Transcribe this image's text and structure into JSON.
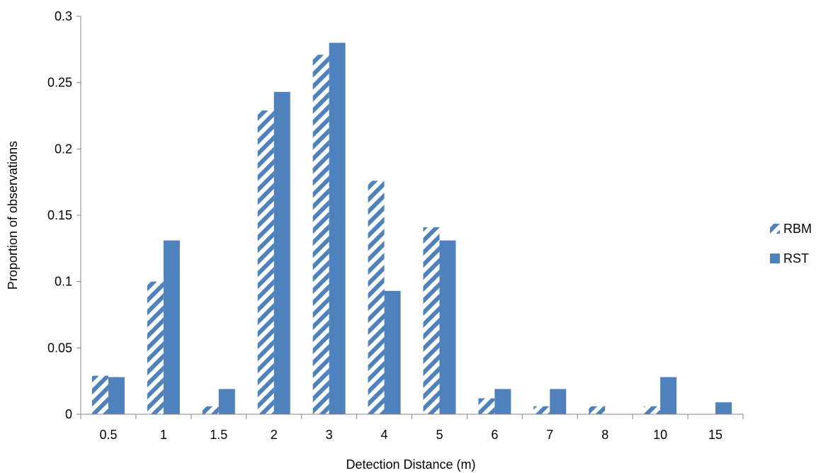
{
  "chart_data": {
    "type": "bar",
    "xlabel": "Detection Distance (m)",
    "ylabel": "Proportion of observations",
    "categories": [
      "0.5",
      "1",
      "1.5",
      "2",
      "3",
      "4",
      "5",
      "6",
      "7",
      "8",
      "10",
      "15"
    ],
    "ylim": [
      0,
      0.3
    ],
    "yticks": [
      "0",
      "0.05",
      "0.1",
      "0.15",
      "0.2",
      "0.25",
      "0.3"
    ],
    "grid": false,
    "legend_position": "right",
    "series": [
      {
        "name": "RBM",
        "pattern": "diagonal-stripes",
        "color": "#4f81bd",
        "values": [
          0.029,
          0.1,
          0.006,
          0.229,
          0.271,
          0.176,
          0.141,
          0.012,
          0.006,
          0.006,
          0.006,
          0.0
        ]
      },
      {
        "name": "RST",
        "pattern": "solid",
        "color": "#4f81bd",
        "values": [
          0.028,
          0.131,
          0.019,
          0.243,
          0.28,
          0.093,
          0.131,
          0.019,
          0.019,
          0.0,
          0.028,
          0.009
        ]
      }
    ]
  }
}
